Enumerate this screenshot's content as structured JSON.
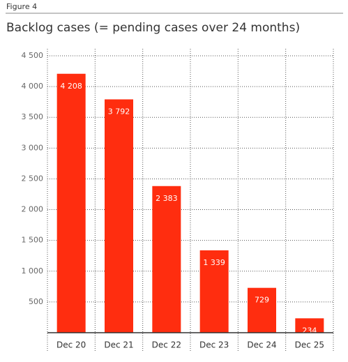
{
  "chart_data": {
    "type": "bar",
    "figure_label": "Figure 4",
    "title": "Backlog cases (= pending cases over 24 months)",
    "categories": [
      "Dec 20",
      "Dec 21",
      "Dec 22",
      "Dec 23",
      "Dec 24",
      "Dec 25"
    ],
    "values": [
      4208,
      3792,
      2383,
      1339,
      729,
      234
    ],
    "value_labels": [
      "4 208",
      "3 792",
      "2 383",
      "1 339",
      "729",
      "234"
    ],
    "color": "#ff2d0f",
    "ylim": [
      0,
      4500
    ],
    "yticks": [
      500,
      {
        "value": 1000,
        "label": "1 000"
      },
      {
        "value": 1500,
        "label": "1 500"
      },
      {
        "value": 2000,
        "label": "2 000"
      },
      {
        "value": 2500,
        "label": "2 500"
      },
      {
        "value": 3000,
        "label": "3 000"
      },
      {
        "value": 3500,
        "label": "3 500"
      },
      {
        "value": 4000,
        "label": "4 000"
      },
      {
        "value": 4500,
        "label": "4 500"
      }
    ],
    "grid": true
  }
}
